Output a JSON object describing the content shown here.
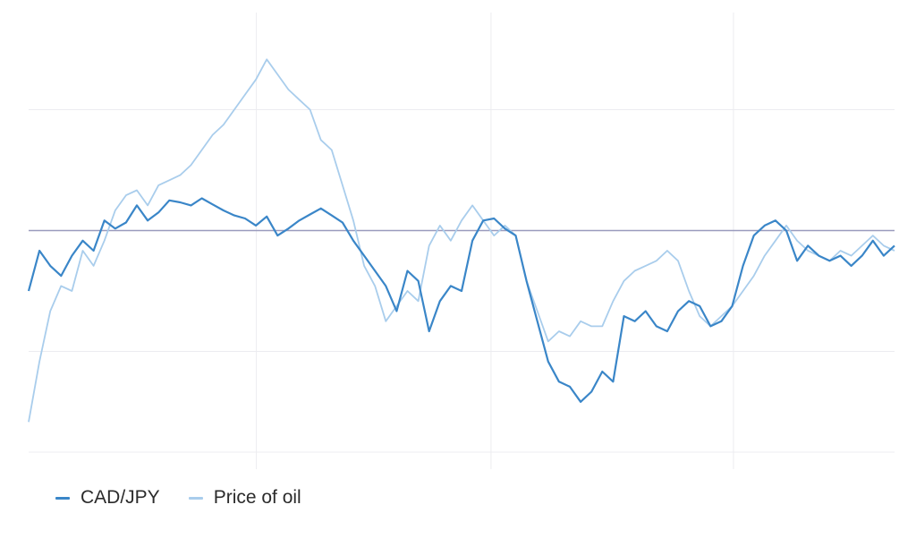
{
  "chart_data": {
    "type": "line",
    "title": "",
    "xlabel": "",
    "ylabel": "",
    "grid": true,
    "legend_position": "bottom-left",
    "x": [
      0,
      0.0125,
      0.025,
      0.0375,
      0.05,
      0.0625,
      0.075,
      0.0875,
      0.1,
      0.1125,
      0.125,
      0.1375,
      0.15,
      0.1625,
      0.175,
      0.1875,
      0.2,
      0.2125,
      0.225,
      0.2375,
      0.25,
      0.2625,
      0.275,
      0.2875,
      0.3,
      0.3125,
      0.325,
      0.3375,
      0.35,
      0.3625,
      0.375,
      0.3875,
      0.4,
      0.4125,
      0.425,
      0.4375,
      0.45,
      0.4625,
      0.475,
      0.4875,
      0.5,
      0.5125,
      0.525,
      0.5375,
      0.55,
      0.5625,
      0.575,
      0.5875,
      0.6,
      0.6125,
      0.625,
      0.6375,
      0.65,
      0.6625,
      0.675,
      0.6875,
      0.7,
      0.7125,
      0.725,
      0.7375,
      0.75,
      0.7625,
      0.775,
      0.7875,
      0.8,
      0.8125,
      0.825,
      0.8375,
      0.85,
      0.8625,
      0.875,
      0.8875,
      0.9,
      0.9125,
      0.925,
      0.9375,
      0.95,
      0.9625,
      0.975,
      0.9875,
      1
    ],
    "series": [
      {
        "name": "CAD/JPY",
        "color": "#3a86c8",
        "values": [
          -0.6,
          -0.2,
          -0.35,
          -0.45,
          -0.25,
          -0.1,
          -0.2,
          0.1,
          0.02,
          0.08,
          0.25,
          0.1,
          0.18,
          0.3,
          0.28,
          0.25,
          0.32,
          0.26,
          0.2,
          0.15,
          0.12,
          0.05,
          0.14,
          -0.05,
          0.02,
          0.1,
          0.16,
          0.22,
          0.15,
          0.08,
          -0.1,
          -0.25,
          -0.4,
          -0.55,
          -0.8,
          -0.4,
          -0.5,
          -1.0,
          -0.7,
          -0.55,
          -0.6,
          -0.1,
          0.1,
          0.12,
          0.02,
          -0.05,
          -0.5,
          -0.9,
          -1.3,
          -1.5,
          -1.55,
          -1.7,
          -1.6,
          -1.4,
          -1.5,
          -0.85,
          -0.9,
          -0.8,
          -0.95,
          -1.0,
          -0.8,
          -0.7,
          -0.75,
          -0.95,
          -0.9,
          -0.75,
          -0.35,
          -0.05,
          0.05,
          0.1,
          0.0,
          -0.3,
          -0.15,
          -0.25,
          -0.3,
          -0.25,
          -0.35,
          -0.25,
          -0.1,
          -0.25,
          -0.15
        ]
      },
      {
        "name": "Price of oil",
        "color": "#a9cdec",
        "values": [
          -1.9,
          -1.3,
          -0.8,
          -0.55,
          -0.6,
          -0.2,
          -0.35,
          -0.1,
          0.2,
          0.35,
          0.4,
          0.25,
          0.45,
          0.5,
          0.55,
          0.65,
          0.8,
          0.95,
          1.05,
          1.2,
          1.35,
          1.5,
          1.7,
          1.55,
          1.4,
          1.3,
          1.2,
          0.9,
          0.8,
          0.45,
          0.1,
          -0.35,
          -0.55,
          -0.9,
          -0.75,
          -0.6,
          -0.7,
          -0.15,
          0.05,
          -0.1,
          0.1,
          0.25,
          0.1,
          -0.05,
          0.05,
          -0.05,
          -0.5,
          -0.8,
          -1.1,
          -1.0,
          -1.05,
          -0.9,
          -0.95,
          -0.95,
          -0.7,
          -0.5,
          -0.4,
          -0.35,
          -0.3,
          -0.2,
          -0.3,
          -0.6,
          -0.85,
          -0.95,
          -0.85,
          -0.75,
          -0.6,
          -0.45,
          -0.25,
          -0.1,
          0.05,
          -0.1,
          -0.2,
          -0.25,
          -0.3,
          -0.2,
          -0.25,
          -0.15,
          -0.05,
          -0.15,
          -0.2
        ]
      }
    ],
    "xlim": [
      0,
      1
    ],
    "ylim": [
      -2.2,
      2.2
    ],
    "reference_line": 0,
    "reference_line_color": "#9a9bbd",
    "grid_color": "#ececf0"
  }
}
